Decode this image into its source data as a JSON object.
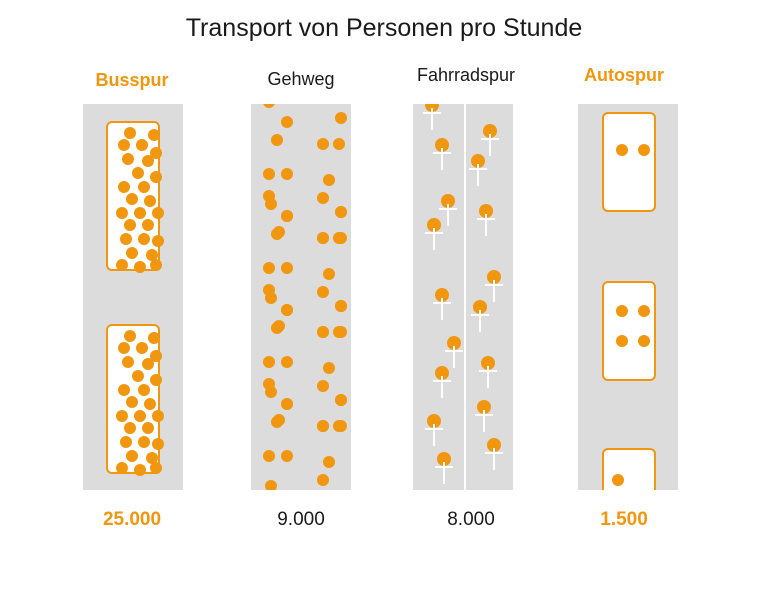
{
  "title": "Transport von Personen pro Stunde",
  "accent_color": "#f0960f",
  "lane_color": "#dcdcdc",
  "lanes": [
    {
      "label": "Busspur",
      "value": "25.000",
      "highlight": true
    },
    {
      "label": "Gehweg",
      "value": "9.000",
      "highlight": false
    },
    {
      "label": "Fahrradspur",
      "value": "8.000",
      "highlight": false
    },
    {
      "label": "Autospur",
      "value": "1.500",
      "highlight": true
    }
  ]
}
